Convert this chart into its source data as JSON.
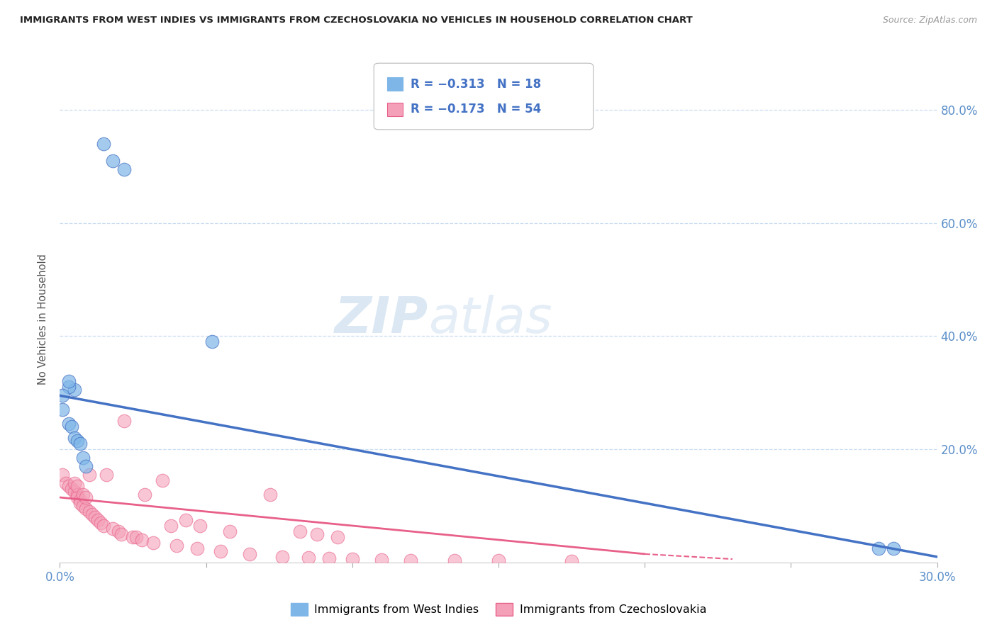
{
  "title": "IMMIGRANTS FROM WEST INDIES VS IMMIGRANTS FROM CZECHOSLOVAKIA NO VEHICLES IN HOUSEHOLD CORRELATION CHART",
  "source": "Source: ZipAtlas.com",
  "ylabel": "No Vehicles in Household",
  "right_yticks": [
    0.0,
    0.2,
    0.4,
    0.6,
    0.8
  ],
  "right_yticklabels": [
    "",
    "20.0%",
    "40.0%",
    "60.0%",
    "80.0%"
  ],
  "xlim": [
    0.0,
    0.3
  ],
  "ylim": [
    0.0,
    0.86
  ],
  "legend_blue_r": "R = −0.313",
  "legend_blue_n": "N = 18",
  "legend_pink_r": "R = −0.173",
  "legend_pink_n": "N = 54",
  "label_blue": "Immigrants from West Indies",
  "label_pink": "Immigrants from Czechoslovakia",
  "color_blue": "#7EB6E8",
  "color_blue_dark": "#4472C4",
  "color_pink": "#F4A0B8",
  "color_pink_dark": "#E8608A",
  "watermark_zip": "ZIP",
  "watermark_atlas": "atlas",
  "blue_scatter_x": [
    0.015,
    0.018,
    0.022,
    0.005,
    0.003,
    0.001,
    0.003,
    0.004,
    0.005,
    0.006,
    0.007,
    0.008,
    0.009,
    0.003,
    0.28,
    0.285,
    0.052,
    0.001
  ],
  "blue_scatter_y": [
    0.74,
    0.71,
    0.695,
    0.305,
    0.31,
    0.27,
    0.245,
    0.24,
    0.22,
    0.215,
    0.21,
    0.185,
    0.17,
    0.32,
    0.025,
    0.025,
    0.39,
    0.295
  ],
  "pink_scatter_x": [
    0.001,
    0.002,
    0.003,
    0.004,
    0.005,
    0.005,
    0.006,
    0.006,
    0.006,
    0.007,
    0.007,
    0.008,
    0.008,
    0.009,
    0.009,
    0.01,
    0.01,
    0.011,
    0.012,
    0.013,
    0.014,
    0.015,
    0.016,
    0.018,
    0.02,
    0.021,
    0.022,
    0.025,
    0.026,
    0.028,
    0.029,
    0.032,
    0.035,
    0.038,
    0.04,
    0.043,
    0.047,
    0.048,
    0.055,
    0.058,
    0.065,
    0.072,
    0.076,
    0.082,
    0.085,
    0.088,
    0.092,
    0.095,
    0.1,
    0.11,
    0.12,
    0.135,
    0.15,
    0.175
  ],
  "pink_scatter_y": [
    0.155,
    0.14,
    0.135,
    0.13,
    0.125,
    0.14,
    0.12,
    0.115,
    0.135,
    0.11,
    0.105,
    0.12,
    0.1,
    0.095,
    0.115,
    0.09,
    0.155,
    0.085,
    0.08,
    0.075,
    0.07,
    0.065,
    0.155,
    0.06,
    0.055,
    0.05,
    0.25,
    0.045,
    0.045,
    0.04,
    0.12,
    0.035,
    0.145,
    0.065,
    0.03,
    0.075,
    0.025,
    0.065,
    0.02,
    0.055,
    0.015,
    0.12,
    0.01,
    0.055,
    0.008,
    0.05,
    0.007,
    0.045,
    0.006,
    0.005,
    0.004,
    0.003,
    0.003,
    0.002
  ],
  "blue_trend_x0": 0.0,
  "blue_trend_y0": 0.295,
  "blue_trend_x1": 0.3,
  "blue_trend_y1": 0.01,
  "pink_trend_x0": 0.0,
  "pink_trend_y0": 0.115,
  "pink_trend_x1": 0.2,
  "pink_trend_y1": 0.015,
  "pink_trend_ext_x1": 0.23,
  "pink_trend_ext_y1": 0.006
}
